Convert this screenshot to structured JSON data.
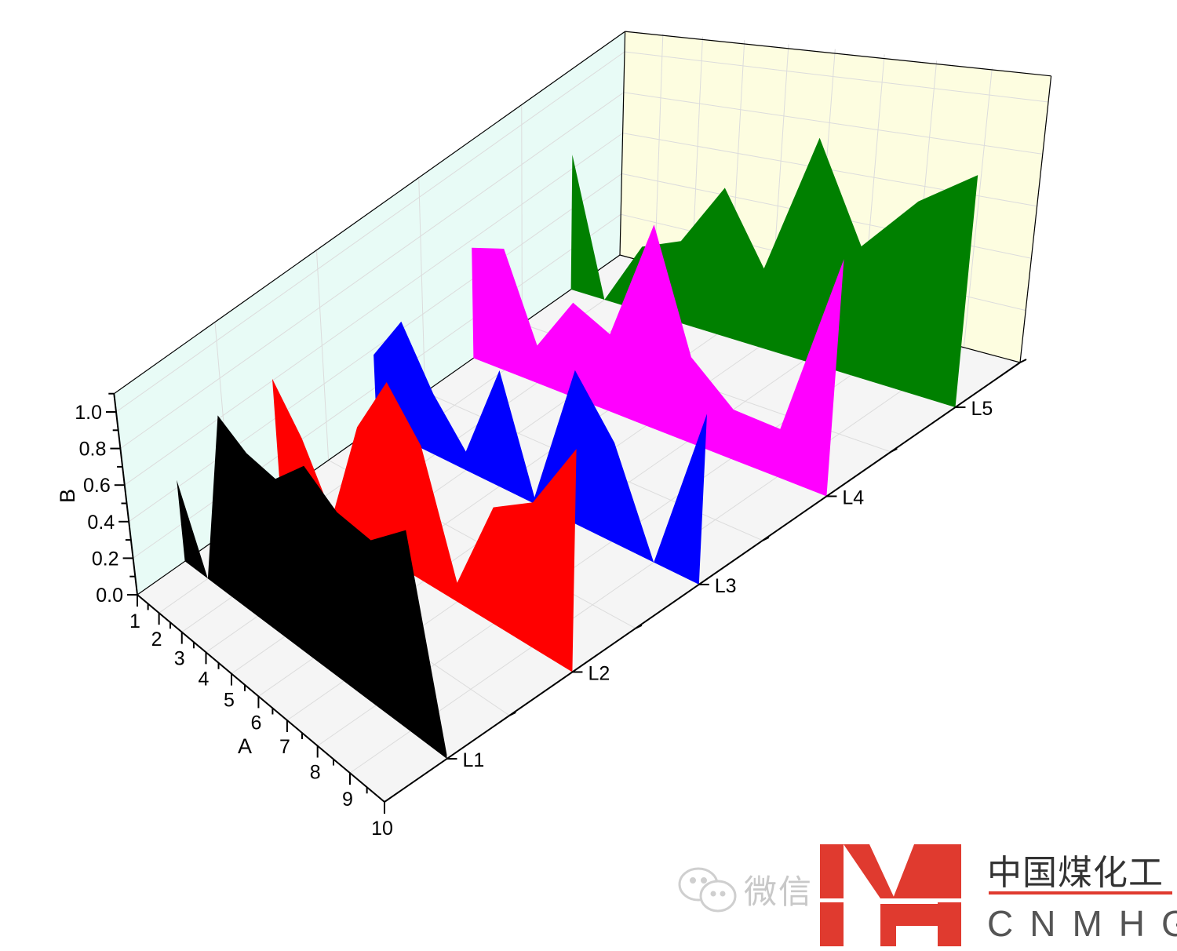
{
  "chart_data": {
    "type": "3d-wall",
    "x_axis": {
      "label": "A",
      "range": [
        1,
        10
      ],
      "ticks": [
        "1",
        "2",
        "3",
        "4",
        "5",
        "6",
        "7",
        "8",
        "9",
        "10"
      ]
    },
    "y_axis": {
      "label": "B",
      "range": [
        0,
        1.1
      ],
      "ticks": [
        "0.0",
        "0.2",
        "0.4",
        "0.6",
        "0.8",
        "1.0"
      ]
    },
    "z_axis": {
      "label": "",
      "ticks": [
        "L1",
        "L2",
        "L3",
        "L4",
        "L5"
      ]
    },
    "x": [
      1,
      2,
      3,
      4,
      5,
      6,
      7,
      8,
      9,
      10
    ],
    "series": [
      {
        "name": "L1",
        "color": "#000000",
        "values": [
          0.44,
          0.0,
          0.95,
          0.84,
          0.8,
          0.96,
          0.83,
          0.8,
          0.96,
          0.02
        ]
      },
      {
        "name": "L2",
        "color": "#ff0000",
        "values": [
          0.61,
          0.37,
          0.05,
          0.58,
          0.88,
          0.65,
          0.09,
          0.54,
          0.66,
          1.0
        ]
      },
      {
        "name": "L3",
        "color": "#0000ff",
        "values": [
          0.37,
          0.6,
          0.3,
          0.09,
          0.55,
          0.03,
          0.69,
          0.44,
          0.0,
          0.73
        ]
      },
      {
        "name": "L4",
        "color": "#ff00ff",
        "values": [
          0.56,
          0.6,
          0.18,
          0.44,
          0.35,
          0.9,
          0.37,
          0.21,
          0.2,
          0.97
        ]
      },
      {
        "name": "L5",
        "color": "#008000",
        "values": [
          0.67,
          0.0,
          0.3,
          0.37,
          0.65,
          0.34,
          0.94,
          0.53,
          0.76,
          0.91
        ]
      }
    ],
    "grid": true,
    "colors": {
      "left_wall": "#e8fbf6",
      "back_wall": "#fdfde0",
      "floor": "#f5f5f5",
      "grid": "#dcdcdc"
    }
  },
  "watermark": {
    "wechat_label": "微信",
    "logo_mark": "MH",
    "company_cn": "中国煤化工",
    "company_en": "CNMHG",
    "brand_color": "#e03a2f"
  }
}
